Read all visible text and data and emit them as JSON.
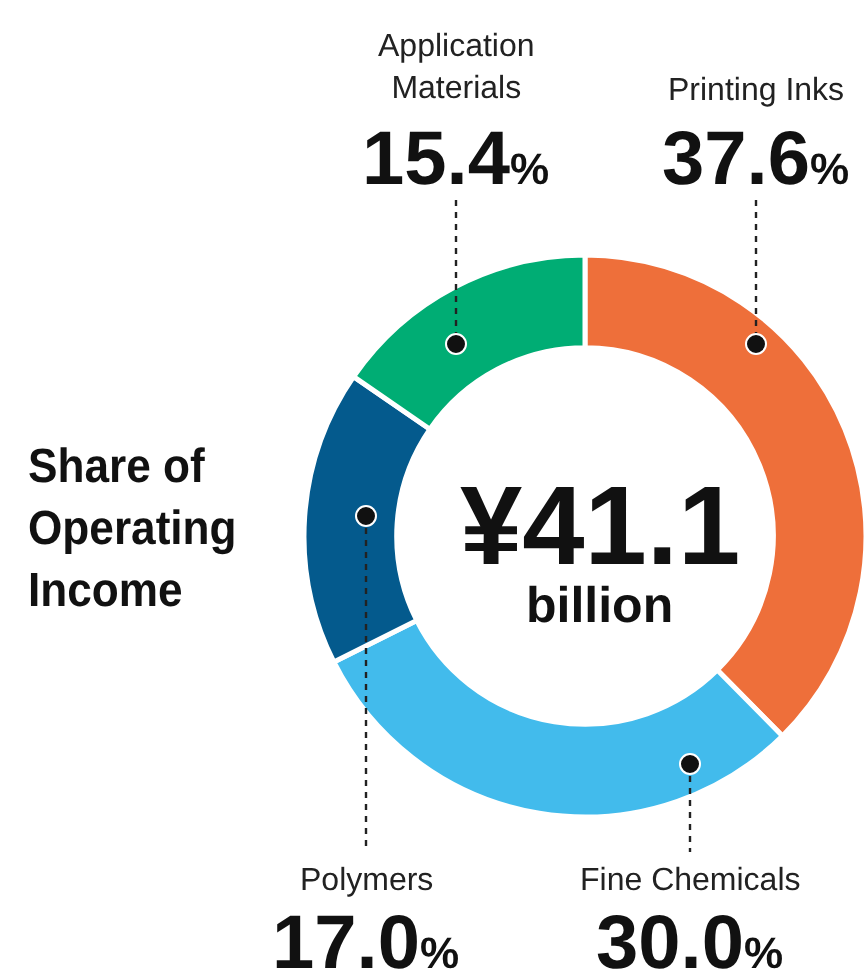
{
  "chart_data": {
    "type": "donut",
    "title": "Share of Operating Income",
    "categories": [
      "Printing Inks",
      "Fine Chemicals",
      "Polymers",
      "Application\nMaterials"
    ],
    "values": [
      37.6,
      30.0,
      17.0,
      15.4
    ],
    "value_labels": [
      "37.6%",
      "30.0%",
      "17.0%",
      "15.4%"
    ],
    "colors": [
      "#ee6f3a",
      "#42bbec",
      "#045a8d",
      "#00ad74"
    ],
    "annotations": [
      "¥41.1",
      "billion"
    ],
    "legend": false
  }
}
